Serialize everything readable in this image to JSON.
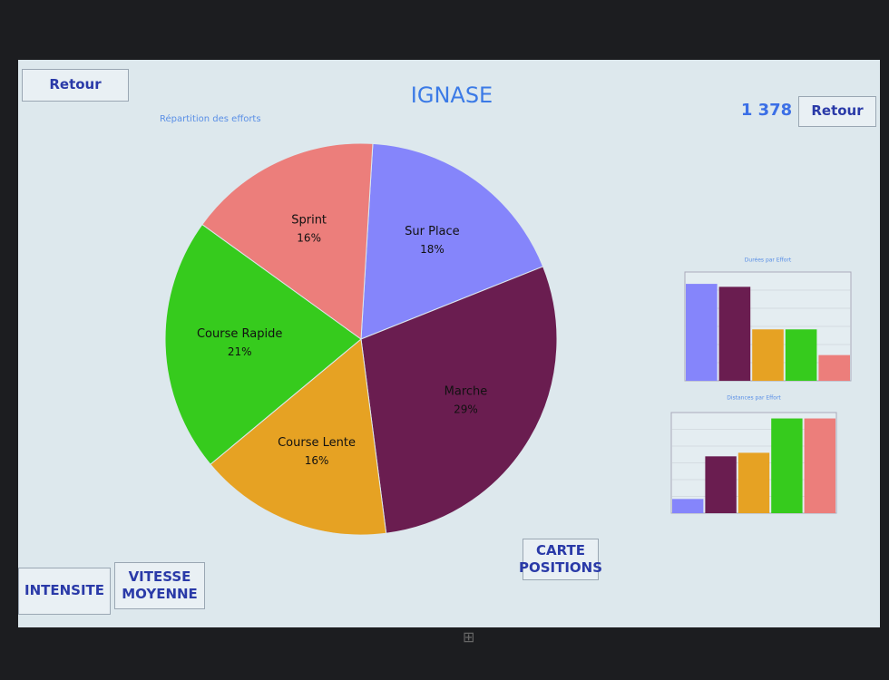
{
  "header": {
    "back_left": "Retour",
    "title": "IGNASE",
    "counter": "1 378",
    "back_right": "Retour"
  },
  "chart_data": [
    {
      "type": "pie",
      "title": "Répartition des efforts",
      "categories": [
        "Sur Place",
        "Marche",
        "Course Lente",
        "Course Rapide",
        "Sprint"
      ],
      "values": [
        18,
        29,
        16,
        21,
        16
      ],
      "value_labels": [
        "18%",
        "29%",
        "16%",
        "21%",
        "16%"
      ],
      "colors": [
        "#8585fb",
        "#6a1d50",
        "#e6a223",
        "#36cb1d",
        "#ec7e7b"
      ]
    },
    {
      "type": "bar",
      "title": "Durées par Effort",
      "values": [
        98,
        95,
        52,
        52,
        26
      ],
      "ylim": [
        0,
        110
      ],
      "colors": [
        "#8585fb",
        "#6a1d50",
        "#e6a223",
        "#36cb1d",
        "#ec7e7b"
      ],
      "grid": true
    },
    {
      "type": "bar",
      "title": "Distances par Effort",
      "values": [
        12,
        48,
        51,
        80,
        80
      ],
      "ylim": [
        0,
        85
      ],
      "colors": [
        "#8585fb",
        "#6a1d50",
        "#e6a223",
        "#36cb1d",
        "#ec7e7b"
      ],
      "grid": true
    }
  ],
  "buttons": [
    "INTENSITE",
    "VITESSE MOYENNE",
    "CARTE POSITIONS"
  ]
}
